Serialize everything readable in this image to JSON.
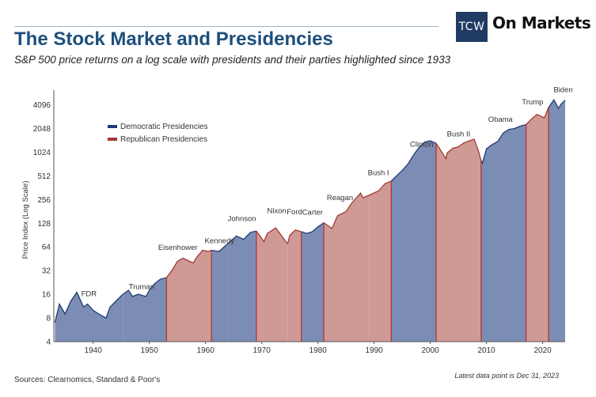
{
  "header": {
    "logo_mark": "TCW",
    "logo_text": "On Markets",
    "title": "The Stock Market and Presidencies",
    "subtitle": "S&P 500 price returns on a log scale with presidents and their parties highlighted since 1933"
  },
  "footer": {
    "sources": "Sources: Clearnomics, Standard & Poor's",
    "latest": "Latest data point is Dec 31, 2023"
  },
  "colors": {
    "democratic": "#7b8db5",
    "democratic_line": "#1f3b73",
    "republican": "#cf9a96",
    "republican_line": "#a33a36",
    "divider": "#b0302b"
  },
  "chart_data": {
    "type": "area",
    "ylabel": "Price Index (Log Scale)",
    "xlabel": "",
    "y_scale": "log2",
    "ylim": [
      4,
      5000
    ],
    "xlim": [
      1933,
      2024
    ],
    "y_ticks": [
      4,
      8,
      16,
      32,
      64,
      128,
      256,
      512,
      1024,
      2048,
      4096
    ],
    "x_ticks": [
      1940,
      1950,
      1960,
      1970,
      1980,
      1990,
      2000,
      2010,
      2020
    ],
    "legend": {
      "placement": "top-left",
      "entries": [
        {
          "label": "Democratic Presidencies",
          "party": "D"
        },
        {
          "label": "Republican Presidencies",
          "party": "R"
        }
      ]
    },
    "presidencies": [
      {
        "name": "FDR",
        "party": "D",
        "start": 1933.2,
        "end": 1945.3
      },
      {
        "name": "Truman",
        "party": "D",
        "start": 1945.3,
        "end": 1953.05
      },
      {
        "name": "Eisenhower",
        "party": "R",
        "start": 1953.05,
        "end": 1961.05
      },
      {
        "name": "Kennedy",
        "party": "D",
        "start": 1961.05,
        "end": 1963.9
      },
      {
        "name": "Johnson",
        "party": "D",
        "start": 1963.9,
        "end": 1969.05
      },
      {
        "name": "Nixon",
        "party": "R",
        "start": 1969.05,
        "end": 1974.6
      },
      {
        "name": "Ford",
        "party": "R",
        "start": 1974.6,
        "end": 1977.05
      },
      {
        "name": "Carter",
        "party": "D",
        "start": 1977.05,
        "end": 1981.05
      },
      {
        "name": "Reagan",
        "party": "R",
        "start": 1981.05,
        "end": 1989.05
      },
      {
        "name": "Bush I",
        "party": "R",
        "start": 1989.05,
        "end": 1993.05
      },
      {
        "name": "Clinton",
        "party": "D",
        "start": 1993.05,
        "end": 2001.05
      },
      {
        "name": "Bush II",
        "party": "R",
        "start": 2001.05,
        "end": 2009.05
      },
      {
        "name": "Obama",
        "party": "D",
        "start": 2009.05,
        "end": 2017.05
      },
      {
        "name": "Trump",
        "party": "R",
        "start": 2017.05,
        "end": 2021.05
      },
      {
        "name": "Biden",
        "party": "D",
        "start": 2021.05,
        "end": 2024.0
      }
    ],
    "series": [
      {
        "name": "S&P 500",
        "x": [
          1933.2,
          1934.0,
          1935.0,
          1936.0,
          1937.1,
          1938.3,
          1939.0,
          1940.0,
          1941.0,
          1942.3,
          1943.0,
          1944.0,
          1945.3,
          1946.3,
          1947.0,
          1948.0,
          1949.4,
          1950.0,
          1951.0,
          1952.0,
          1953.05,
          1954.0,
          1955.0,
          1956.0,
          1957.8,
          1958.5,
          1959.5,
          1960.5,
          1961.05,
          1962.4,
          1963.9,
          1965.5,
          1966.8,
          1968.0,
          1969.05,
          1970.4,
          1971.0,
          1972.5,
          1973.0,
          1974.6,
          1975.0,
          1976.0,
          1977.05,
          1978.0,
          1979.0,
          1980.0,
          1981.05,
          1982.5,
          1983.5,
          1985.0,
          1986.0,
          1987.6,
          1988.0,
          1989.05,
          1990.8,
          1992.0,
          1993.05,
          1995.0,
          1996.0,
          1997.0,
          1998.0,
          1999.0,
          2000.0,
          2001.05,
          2002.8,
          2003.0,
          2004.0,
          2005.0,
          2006.0,
          2007.8,
          2008.5,
          2009.05,
          2009.3,
          2010.0,
          2011.0,
          2012.0,
          2013.0,
          2014.0,
          2015.0,
          2016.0,
          2017.05,
          2018.0,
          2019.0,
          2020.3,
          2021.05,
          2022.0,
          2022.8,
          2023.3,
          2024.0
        ],
        "values": [
          7,
          12,
          9,
          13,
          17,
          11,
          12,
          10,
          9,
          8,
          11,
          13,
          16,
          18,
          15,
          16,
          15,
          18,
          22,
          25,
          26,
          32,
          42,
          46,
          40,
          48,
          58,
          56,
          58,
          56,
          70,
          88,
          80,
          98,
          102,
          75,
          95,
          112,
          100,
          70,
          90,
          105,
          100,
          95,
          100,
          115,
          130,
          110,
          160,
          180,
          230,
          310,
          270,
          290,
          330,
          410,
          440,
          600,
          720,
          940,
          1180,
          1380,
          1430,
          1330,
          850,
          1000,
          1150,
          1200,
          1350,
          1500,
          1100,
          800,
          750,
          1130,
          1280,
          1400,
          1800,
          2000,
          2050,
          2200,
          2300,
          2700,
          3100,
          2800,
          3800,
          4750,
          3700,
          4200,
          4700
        ]
      }
    ]
  }
}
